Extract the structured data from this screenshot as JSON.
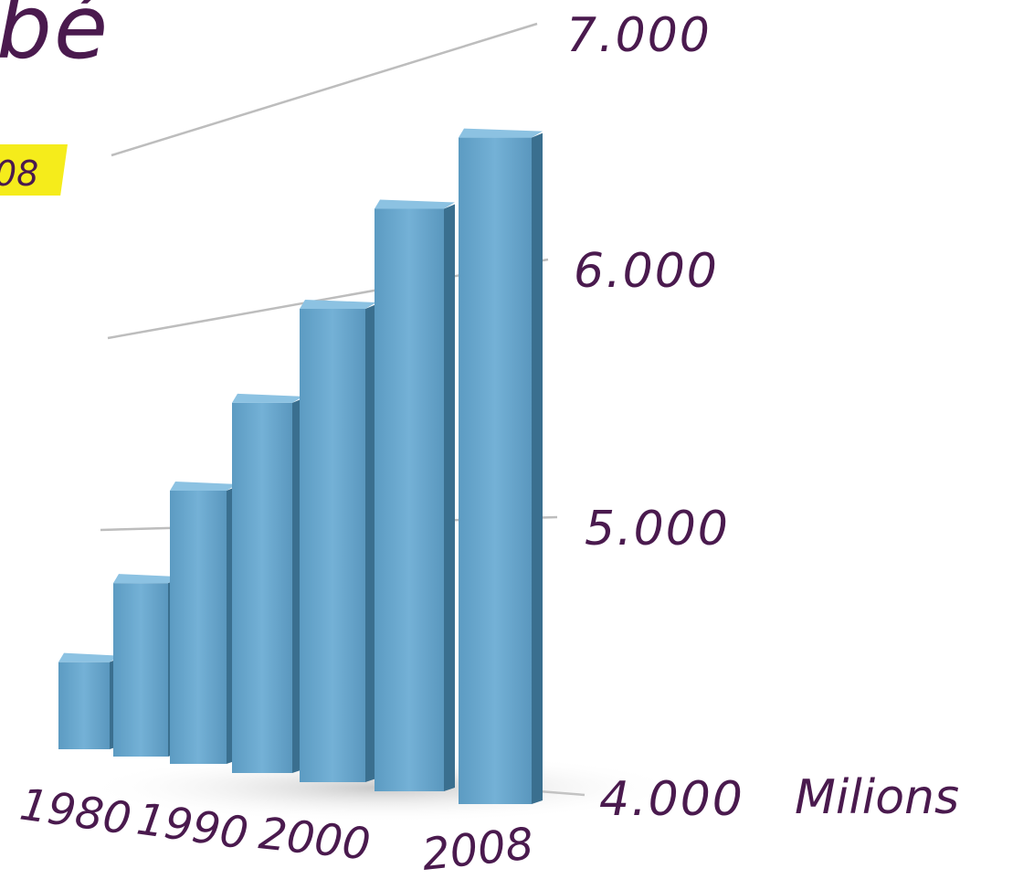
{
  "title_fragment": "bé",
  "highlight_fragment": "08",
  "unit_label": "Milions",
  "colors": {
    "bar_front": "#6aa7cc",
    "bar_side": "#3a6f8f",
    "bar_top": "#8cc2e2",
    "ink": "#4a1a4e",
    "highlight": "#f5ec1b",
    "grid": "#bdbdbd"
  },
  "chart_data": {
    "type": "bar",
    "title": "",
    "xlabel": "",
    "ylabel": "Milions",
    "categories": [
      "1980",
      "",
      "1990",
      "",
      "2000",
      "",
      "2008"
    ],
    "values": [
      4440,
      4850,
      5300,
      5700,
      6100,
      6500,
      6770
    ],
    "series": [
      {
        "name": "",
        "values": [
          4440,
          4850,
          5300,
          5700,
          6100,
          6500,
          6770
        ]
      }
    ],
    "ylim": [
      4000,
      7000
    ],
    "y_ticks": [
      "4.000",
      "5.000",
      "6.000",
      "7.000"
    ],
    "y_tick_values": [
      4000,
      5000,
      6000,
      7000
    ],
    "x_tick_labels": [
      "1980",
      "1990",
      "2000",
      "2008"
    ],
    "grid": true,
    "style": "3d-perspective"
  }
}
